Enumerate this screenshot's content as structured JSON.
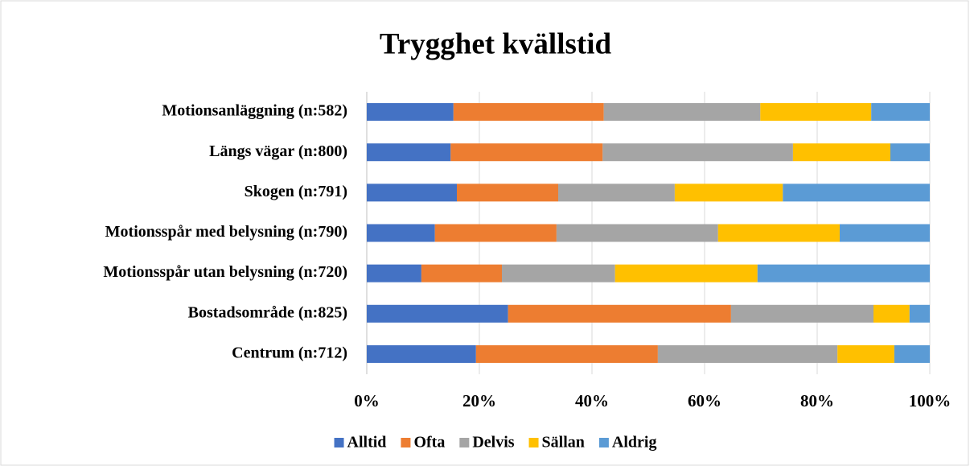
{
  "chart_data": {
    "type": "stacked-barh",
    "title": "Trygghet kvällstid",
    "categories": [
      "Motionsanläggning (n:582)",
      "Längs vägar (n:800)",
      "Skogen (n:791)",
      "Motionsspår med belysning (n:790)",
      "Motionsspår utan belysning (n:720)",
      "Bostadsområde (n:825)",
      "Centrum (n:712)"
    ],
    "series": [
      {
        "name": "Alltid",
        "color": "#4472c4",
        "values": [
          15.4,
          14.9,
          16.0,
          12.1,
          9.7,
          25.1,
          19.4
        ]
      },
      {
        "name": "Ofta",
        "color": "#ed7d31",
        "values": [
          26.7,
          27.0,
          18.0,
          21.6,
          14.3,
          39.6,
          32.3
        ]
      },
      {
        "name": "Delvis",
        "color": "#a5a5a5",
        "values": [
          27.8,
          33.8,
          20.7,
          28.7,
          20.1,
          25.3,
          31.9
        ]
      },
      {
        "name": "Sällan",
        "color": "#ffc000",
        "values": [
          19.7,
          17.3,
          19.2,
          21.6,
          25.3,
          6.4,
          10.1
        ]
      },
      {
        "name": "Aldrig",
        "color": "#5b9bd5",
        "values": [
          10.4,
          7.0,
          26.1,
          16.0,
          30.6,
          3.6,
          6.3
        ]
      }
    ],
    "xlim": [
      0,
      100
    ],
    "xticks": [
      {
        "value": 0,
        "label": "0%"
      },
      {
        "value": 20,
        "label": "20%"
      },
      {
        "value": 40,
        "label": "40%"
      },
      {
        "value": 60,
        "label": "60%"
      },
      {
        "value": 80,
        "label": "80%"
      },
      {
        "value": 100,
        "label": "100%"
      }
    ],
    "grid": true,
    "legend": "bottom"
  }
}
